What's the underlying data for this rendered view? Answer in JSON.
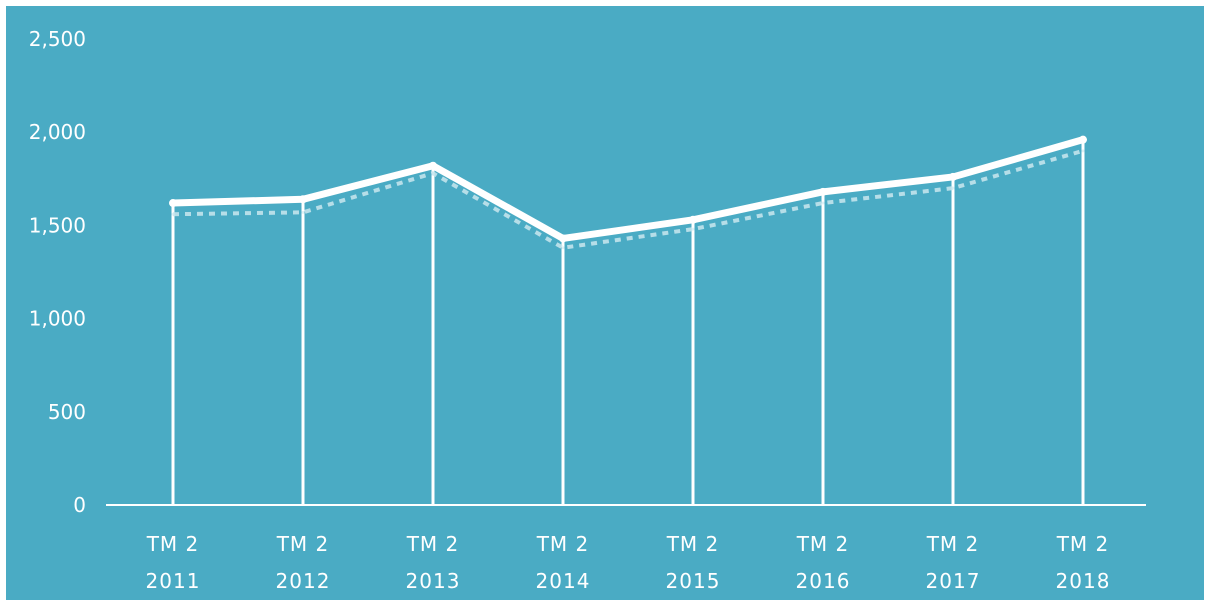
{
  "colors": {
    "background": "#4aabc4",
    "outer": "#ffffff",
    "series_main": "#ffffff",
    "series_dotted": "#c9e6ef",
    "drop_lines": "#ffffff",
    "axis": "#ffffff",
    "text": "#ffffff"
  },
  "chart_data": {
    "type": "line",
    "title": "",
    "xlabel": "",
    "ylabel": "",
    "ylim": [
      0,
      2500
    ],
    "yticks": [
      0,
      500,
      1000,
      1500,
      2000,
      2500
    ],
    "ytick_labels": [
      "0",
      "500",
      "1,000",
      "1,500",
      "2,000",
      "2,500"
    ],
    "categories": [
      [
        "TM 2",
        "2011"
      ],
      [
        "TM 2",
        "2012"
      ],
      [
        "TM 2",
        "2013"
      ],
      [
        "TM 2",
        "2014"
      ],
      [
        "TM 2",
        "2015"
      ],
      [
        "TM 2",
        "2016"
      ],
      [
        "TM 2",
        "2017"
      ],
      [
        "TM 2",
        "2018"
      ]
    ],
    "series": [
      {
        "style": "solid-thick",
        "values": [
          1620,
          1640,
          1820,
          1430,
          1530,
          1680,
          1760,
          1960
        ]
      },
      {
        "style": "dotted",
        "values": [
          1560,
          1570,
          1780,
          1380,
          1480,
          1620,
          1700,
          1900
        ]
      }
    ],
    "drop_lines": true,
    "grid": false
  }
}
